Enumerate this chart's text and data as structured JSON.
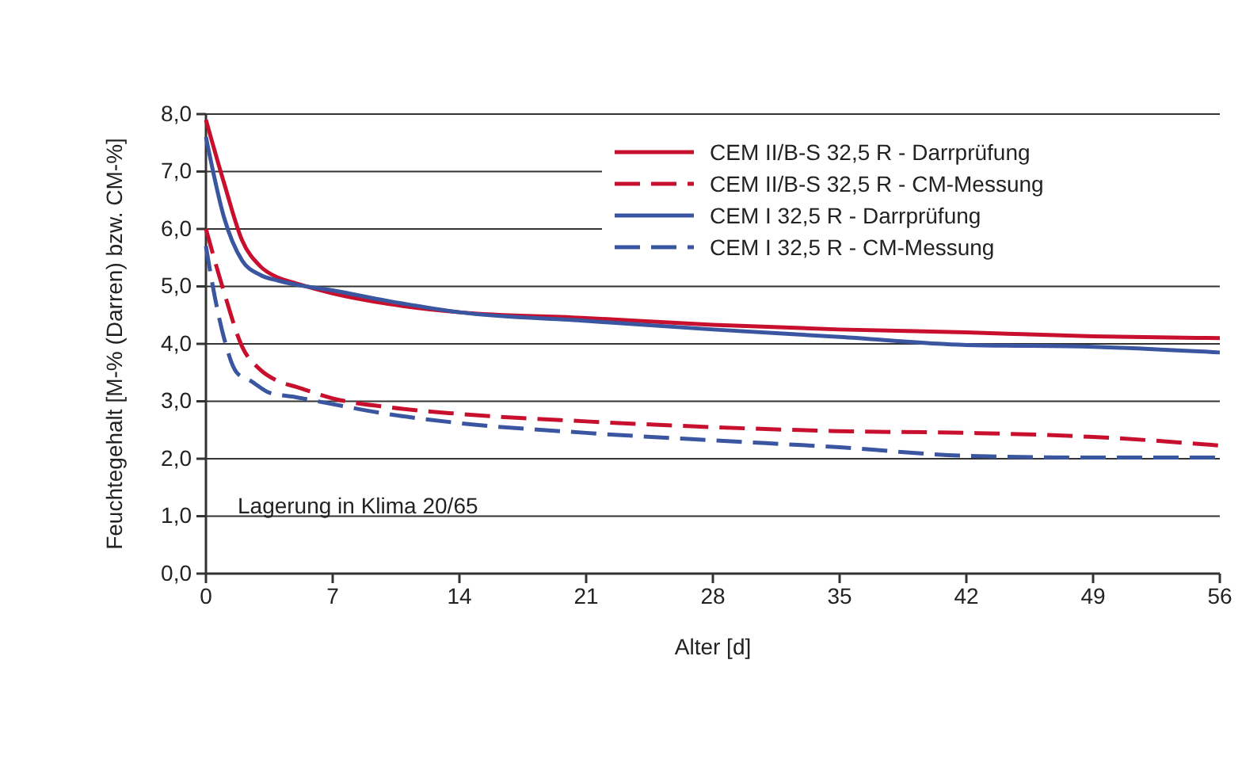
{
  "chart_data": {
    "type": "line",
    "xlabel": "Alter [d]",
    "ylabel": "Feuchtegehalt [M-% (Darren) bzw. CM-%]",
    "xlim": [
      0,
      56
    ],
    "xticks": [
      0,
      7,
      14,
      21,
      28,
      35,
      42,
      49,
      56
    ],
    "ylim": [
      0,
      8
    ],
    "yticks": [
      {
        "value": 0,
        "label": "0,0"
      },
      {
        "value": 1,
        "label": "1,0"
      },
      {
        "value": 2,
        "label": "2,0"
      },
      {
        "value": 3,
        "label": "3,0"
      },
      {
        "value": 4,
        "label": "4,0"
      },
      {
        "value": 5,
        "label": "5,0"
      },
      {
        "value": 6,
        "label": "6,0"
      },
      {
        "value": 7,
        "label": "7,0"
      },
      {
        "value": 8,
        "label": "8,0"
      }
    ],
    "grid": "y",
    "legend": "top right",
    "marker": "none",
    "annotations": [
      "Lagerung in Klima 20/65"
    ],
    "series": [
      {
        "name": "CEM II/B-S 32,5 R - Darrprüfung",
        "color": "#c8102e",
        "line_style": "solid",
        "x": [
          0,
          1,
          2,
          3,
          4,
          5,
          7,
          10,
          14,
          21,
          28,
          35,
          42,
          49,
          56
        ],
        "values": [
          7.9,
          6.8,
          5.8,
          5.35,
          5.15,
          5.05,
          4.88,
          4.7,
          4.55,
          4.45,
          4.33,
          4.25,
          4.2,
          4.13,
          4.1
        ]
      },
      {
        "name": "CEM II/B-S 32,5 R - CM-Messung",
        "color": "#c8102e",
        "line_style": "dashed",
        "x": [
          0,
          1,
          2,
          3,
          4,
          5,
          7,
          10,
          14,
          21,
          28,
          35,
          42,
          49,
          56
        ],
        "values": [
          6.0,
          4.9,
          3.95,
          3.55,
          3.35,
          3.25,
          3.05,
          2.9,
          2.78,
          2.65,
          2.55,
          2.48,
          2.45,
          2.38,
          2.23
        ]
      },
      {
        "name": "CEM I 32,5 R - Darrprüfung",
        "color": "#3a56a0",
        "line_style": "solid",
        "x": [
          0,
          1,
          2,
          3,
          4,
          5,
          7,
          10,
          14,
          21,
          28,
          35,
          42,
          49,
          56
        ],
        "values": [
          7.6,
          6.2,
          5.45,
          5.2,
          5.1,
          5.03,
          4.93,
          4.75,
          4.55,
          4.4,
          4.25,
          4.12,
          3.98,
          3.95,
          3.85
        ]
      },
      {
        "name": "CEM I 32,5 R - CM-Messung",
        "color": "#3a56a0",
        "line_style": "dashed",
        "x": [
          0,
          0.5,
          1,
          1.7,
          2.5,
          3.5,
          5,
          7,
          10,
          14,
          21,
          28,
          35,
          42,
          49,
          56
        ],
        "values": [
          5.7,
          4.8,
          4.1,
          3.5,
          3.35,
          3.15,
          3.07,
          2.95,
          2.78,
          2.62,
          2.45,
          2.32,
          2.2,
          2.05,
          2.02,
          2.02
        ]
      }
    ]
  }
}
